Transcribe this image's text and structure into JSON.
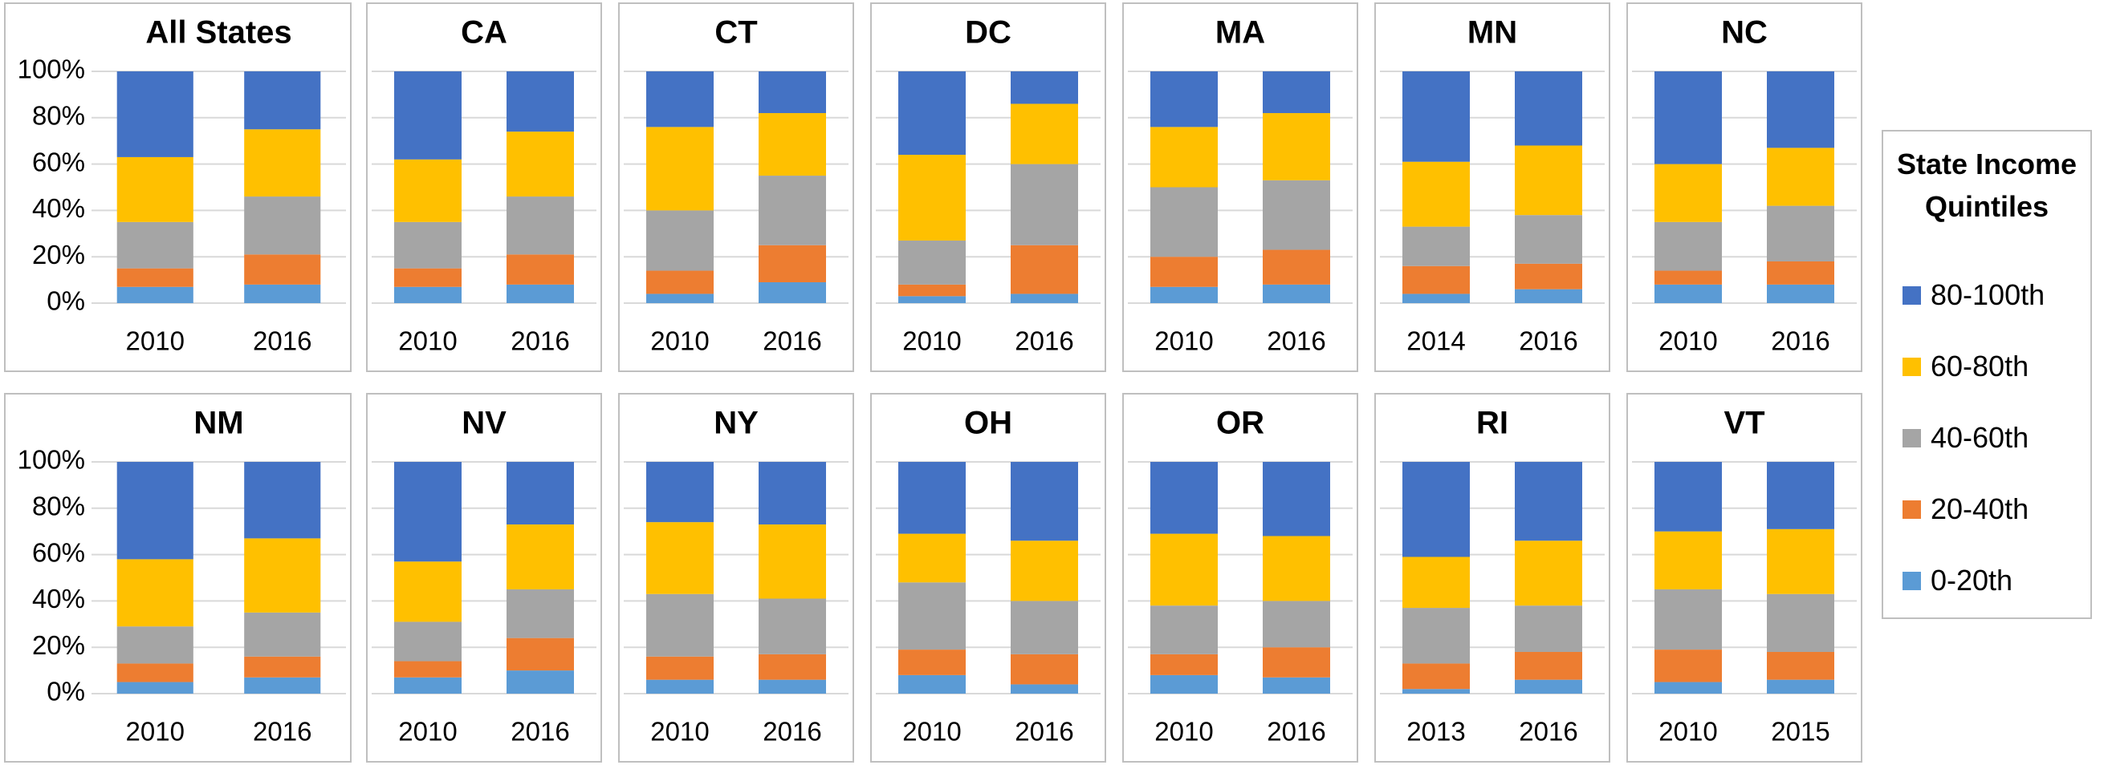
{
  "legend": {
    "title": "State Income Quintiles"
  },
  "chart_data": [
    {
      "type": "bar",
      "title": "All States",
      "categories": [
        "2010",
        "2016"
      ],
      "ylim": [
        0,
        100
      ],
      "yticks": [
        {
          "value": 0,
          "label": "0%"
        },
        {
          "value": 20,
          "label": "20%"
        },
        {
          "value": 40,
          "label": "40%"
        },
        {
          "value": 60,
          "label": "60%"
        },
        {
          "value": 80,
          "label": "80%"
        },
        {
          "value": 100,
          "label": "100%"
        }
      ],
      "grid": true,
      "series": [
        {
          "name": "0-20th",
          "color": "#5b9bd5",
          "values": [
            7,
            8
          ]
        },
        {
          "name": "20-40th",
          "color": "#ed7d31",
          "values": [
            8,
            13
          ]
        },
        {
          "name": "40-60th",
          "color": "#a5a5a5",
          "values": [
            20,
            25
          ]
        },
        {
          "name": "60-80th",
          "color": "#ffc000",
          "values": [
            28,
            29
          ]
        },
        {
          "name": "80-100th",
          "color": "#4472c4",
          "values": [
            37,
            25
          ]
        }
      ]
    },
    {
      "type": "bar",
      "title": "CA",
      "categories": [
        "2010",
        "2016"
      ],
      "ylim": [
        0,
        100
      ],
      "yticks": [
        0,
        20,
        40,
        60,
        80,
        100
      ],
      "grid": true,
      "series": [
        {
          "name": "0-20th",
          "color": "#5b9bd5",
          "values": [
            7,
            8
          ]
        },
        {
          "name": "20-40th",
          "color": "#ed7d31",
          "values": [
            8,
            13
          ]
        },
        {
          "name": "40-60th",
          "color": "#a5a5a5",
          "values": [
            20,
            25
          ]
        },
        {
          "name": "60-80th",
          "color": "#ffc000",
          "values": [
            27,
            28
          ]
        },
        {
          "name": "80-100th",
          "color": "#4472c4",
          "values": [
            38,
            26
          ]
        }
      ]
    },
    {
      "type": "bar",
      "title": "CT",
      "categories": [
        "2010",
        "2016"
      ],
      "ylim": [
        0,
        100
      ],
      "yticks": [
        0,
        20,
        40,
        60,
        80,
        100
      ],
      "grid": true,
      "series": [
        {
          "name": "0-20th",
          "color": "#5b9bd5",
          "values": [
            4,
            9
          ]
        },
        {
          "name": "20-40th",
          "color": "#ed7d31",
          "values": [
            10,
            16
          ]
        },
        {
          "name": "40-60th",
          "color": "#a5a5a5",
          "values": [
            26,
            30
          ]
        },
        {
          "name": "60-80th",
          "color": "#ffc000",
          "values": [
            36,
            27
          ]
        },
        {
          "name": "80-100th",
          "color": "#4472c4",
          "values": [
            24,
            18
          ]
        }
      ]
    },
    {
      "type": "bar",
      "title": "DC",
      "categories": [
        "2010",
        "2016"
      ],
      "ylim": [
        0,
        100
      ],
      "yticks": [
        0,
        20,
        40,
        60,
        80,
        100
      ],
      "grid": true,
      "series": [
        {
          "name": "0-20th",
          "color": "#5b9bd5",
          "values": [
            3,
            4
          ]
        },
        {
          "name": "20-40th",
          "color": "#ed7d31",
          "values": [
            5,
            21
          ]
        },
        {
          "name": "40-60th",
          "color": "#a5a5a5",
          "values": [
            19,
            35
          ]
        },
        {
          "name": "60-80th",
          "color": "#ffc000",
          "values": [
            37,
            26
          ]
        },
        {
          "name": "80-100th",
          "color": "#4472c4",
          "values": [
            36,
            14
          ]
        }
      ]
    },
    {
      "type": "bar",
      "title": "MA",
      "categories": [
        "2010",
        "2016"
      ],
      "ylim": [
        0,
        100
      ],
      "yticks": [
        0,
        20,
        40,
        60,
        80,
        100
      ],
      "grid": true,
      "series": [
        {
          "name": "0-20th",
          "color": "#5b9bd5",
          "values": [
            7,
            8
          ]
        },
        {
          "name": "20-40th",
          "color": "#ed7d31",
          "values": [
            13,
            15
          ]
        },
        {
          "name": "40-60th",
          "color": "#a5a5a5",
          "values": [
            30,
            30
          ]
        },
        {
          "name": "60-80th",
          "color": "#ffc000",
          "values": [
            26,
            29
          ]
        },
        {
          "name": "80-100th",
          "color": "#4472c4",
          "values": [
            24,
            18
          ]
        }
      ]
    },
    {
      "type": "bar",
      "title": "MN",
      "categories": [
        "2014",
        "2016"
      ],
      "ylim": [
        0,
        100
      ],
      "yticks": [
        0,
        20,
        40,
        60,
        80,
        100
      ],
      "grid": true,
      "series": [
        {
          "name": "0-20th",
          "color": "#5b9bd5",
          "values": [
            4,
            6
          ]
        },
        {
          "name": "20-40th",
          "color": "#ed7d31",
          "values": [
            12,
            11
          ]
        },
        {
          "name": "40-60th",
          "color": "#a5a5a5",
          "values": [
            17,
            21
          ]
        },
        {
          "name": "60-80th",
          "color": "#ffc000",
          "values": [
            28,
            30
          ]
        },
        {
          "name": "80-100th",
          "color": "#4472c4",
          "values": [
            39,
            32
          ]
        }
      ]
    },
    {
      "type": "bar",
      "title": "NC",
      "categories": [
        "2010",
        "2016"
      ],
      "ylim": [
        0,
        100
      ],
      "yticks": [
        0,
        20,
        40,
        60,
        80,
        100
      ],
      "grid": true,
      "series": [
        {
          "name": "0-20th",
          "color": "#5b9bd5",
          "values": [
            8,
            8
          ]
        },
        {
          "name": "20-40th",
          "color": "#ed7d31",
          "values": [
            6,
            10
          ]
        },
        {
          "name": "40-60th",
          "color": "#a5a5a5",
          "values": [
            21,
            24
          ]
        },
        {
          "name": "60-80th",
          "color": "#ffc000",
          "values": [
            25,
            25
          ]
        },
        {
          "name": "80-100th",
          "color": "#4472c4",
          "values": [
            40,
            33
          ]
        }
      ]
    },
    {
      "type": "bar",
      "title": "NM",
      "categories": [
        "2010",
        "2016"
      ],
      "ylim": [
        0,
        100
      ],
      "yticks": [
        {
          "value": 0,
          "label": "0%"
        },
        {
          "value": 20,
          "label": "20%"
        },
        {
          "value": 40,
          "label": "40%"
        },
        {
          "value": 60,
          "label": "60%"
        },
        {
          "value": 80,
          "label": "80%"
        },
        {
          "value": 100,
          "label": "100%"
        }
      ],
      "grid": true,
      "series": [
        {
          "name": "0-20th",
          "color": "#5b9bd5",
          "values": [
            5,
            7
          ]
        },
        {
          "name": "20-40th",
          "color": "#ed7d31",
          "values": [
            8,
            9
          ]
        },
        {
          "name": "40-60th",
          "color": "#a5a5a5",
          "values": [
            16,
            19
          ]
        },
        {
          "name": "60-80th",
          "color": "#ffc000",
          "values": [
            29,
            32
          ]
        },
        {
          "name": "80-100th",
          "color": "#4472c4",
          "values": [
            42,
            33
          ]
        }
      ]
    },
    {
      "type": "bar",
      "title": "NV",
      "categories": [
        "2010",
        "2016"
      ],
      "ylim": [
        0,
        100
      ],
      "yticks": [
        0,
        20,
        40,
        60,
        80,
        100
      ],
      "grid": true,
      "series": [
        {
          "name": "0-20th",
          "color": "#5b9bd5",
          "values": [
            7,
            10
          ]
        },
        {
          "name": "20-40th",
          "color": "#ed7d31",
          "values": [
            7,
            14
          ]
        },
        {
          "name": "40-60th",
          "color": "#a5a5a5",
          "values": [
            17,
            21
          ]
        },
        {
          "name": "60-80th",
          "color": "#ffc000",
          "values": [
            26,
            28
          ]
        },
        {
          "name": "80-100th",
          "color": "#4472c4",
          "values": [
            43,
            27
          ]
        }
      ]
    },
    {
      "type": "bar",
      "title": "NY",
      "categories": [
        "2010",
        "2016"
      ],
      "ylim": [
        0,
        100
      ],
      "yticks": [
        0,
        20,
        40,
        60,
        80,
        100
      ],
      "grid": true,
      "series": [
        {
          "name": "0-20th",
          "color": "#5b9bd5",
          "values": [
            6,
            6
          ]
        },
        {
          "name": "20-40th",
          "color": "#ed7d31",
          "values": [
            10,
            11
          ]
        },
        {
          "name": "40-60th",
          "color": "#a5a5a5",
          "values": [
            27,
            24
          ]
        },
        {
          "name": "60-80th",
          "color": "#ffc000",
          "values": [
            31,
            32
          ]
        },
        {
          "name": "80-100th",
          "color": "#4472c4",
          "values": [
            26,
            27
          ]
        }
      ]
    },
    {
      "type": "bar",
      "title": "OH",
      "categories": [
        "2010",
        "2016"
      ],
      "ylim": [
        0,
        100
      ],
      "yticks": [
        0,
        20,
        40,
        60,
        80,
        100
      ],
      "grid": true,
      "series": [
        {
          "name": "0-20th",
          "color": "#5b9bd5",
          "values": [
            8,
            4
          ]
        },
        {
          "name": "20-40th",
          "color": "#ed7d31",
          "values": [
            11,
            13
          ]
        },
        {
          "name": "40-60th",
          "color": "#a5a5a5",
          "values": [
            29,
            23
          ]
        },
        {
          "name": "60-80th",
          "color": "#ffc000",
          "values": [
            21,
            26
          ]
        },
        {
          "name": "80-100th",
          "color": "#4472c4",
          "values": [
            31,
            34
          ]
        }
      ]
    },
    {
      "type": "bar",
      "title": "OR",
      "categories": [
        "2010",
        "2016"
      ],
      "ylim": [
        0,
        100
      ],
      "yticks": [
        0,
        20,
        40,
        60,
        80,
        100
      ],
      "grid": true,
      "series": [
        {
          "name": "0-20th",
          "color": "#5b9bd5",
          "values": [
            8,
            7
          ]
        },
        {
          "name": "20-40th",
          "color": "#ed7d31",
          "values": [
            9,
            13
          ]
        },
        {
          "name": "40-60th",
          "color": "#a5a5a5",
          "values": [
            21,
            20
          ]
        },
        {
          "name": "60-80th",
          "color": "#ffc000",
          "values": [
            31,
            28
          ]
        },
        {
          "name": "80-100th",
          "color": "#4472c4",
          "values": [
            31,
            32
          ]
        }
      ]
    },
    {
      "type": "bar",
      "title": "RI",
      "categories": [
        "2013",
        "2016"
      ],
      "ylim": [
        0,
        100
      ],
      "yticks": [
        0,
        20,
        40,
        60,
        80,
        100
      ],
      "grid": true,
      "series": [
        {
          "name": "0-20th",
          "color": "#5b9bd5",
          "values": [
            2,
            6
          ]
        },
        {
          "name": "20-40th",
          "color": "#ed7d31",
          "values": [
            11,
            12
          ]
        },
        {
          "name": "40-60th",
          "color": "#a5a5a5",
          "values": [
            24,
            20
          ]
        },
        {
          "name": "60-80th",
          "color": "#ffc000",
          "values": [
            22,
            28
          ]
        },
        {
          "name": "80-100th",
          "color": "#4472c4",
          "values": [
            41,
            34
          ]
        }
      ]
    },
    {
      "type": "bar",
      "title": "VT",
      "categories": [
        "2010",
        "2015"
      ],
      "ylim": [
        0,
        100
      ],
      "yticks": [
        0,
        20,
        40,
        60,
        80,
        100
      ],
      "grid": true,
      "series": [
        {
          "name": "0-20th",
          "color": "#5b9bd5",
          "values": [
            5,
            6
          ]
        },
        {
          "name": "20-40th",
          "color": "#ed7d31",
          "values": [
            14,
            12
          ]
        },
        {
          "name": "40-60th",
          "color": "#a5a5a5",
          "values": [
            26,
            25
          ]
        },
        {
          "name": "60-80th",
          "color": "#ffc000",
          "values": [
            25,
            28
          ]
        },
        {
          "name": "80-100th",
          "color": "#4472c4",
          "values": [
            30,
            29
          ]
        }
      ]
    }
  ]
}
